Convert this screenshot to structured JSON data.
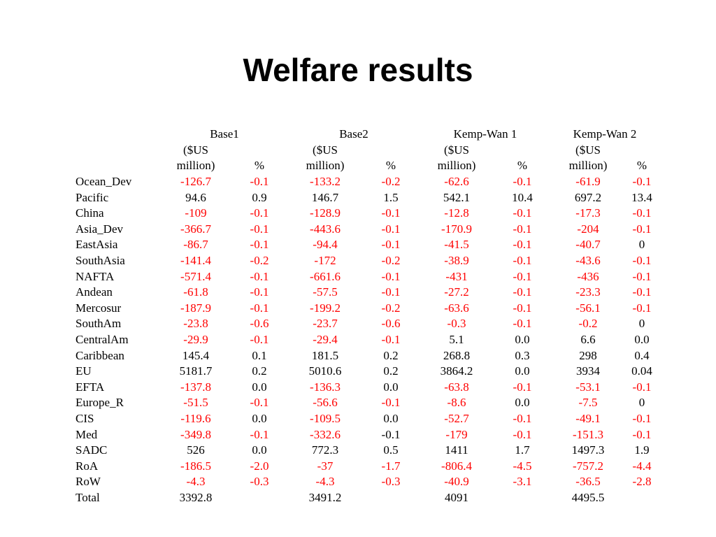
{
  "title": "Welfare results",
  "colors": {
    "negative": "#ff0000",
    "text": "#000000"
  },
  "header": {
    "groups": [
      "Base1",
      "Base2",
      "Kemp-Wan 1",
      "Kemp-Wan 2"
    ],
    "unit_line1": "($US",
    "unit_line2": "million)",
    "pct": "%"
  },
  "rows": [
    {
      "label": "Ocean_Dev",
      "bold": false,
      "cells": [
        {
          "v": "-126.7",
          "red": true
        },
        {
          "v": "-0.1",
          "red": true
        },
        {
          "v": "-133.2",
          "red": true
        },
        {
          "v": "-0.2",
          "red": true
        },
        {
          "v": "-62.6",
          "red": true
        },
        {
          "v": "-0.1",
          "red": true
        },
        {
          "v": "-61.9",
          "red": true
        },
        {
          "v": "-0.1",
          "red": true
        }
      ]
    },
    {
      "label": "Pacific",
      "bold": true,
      "cells": [
        {
          "v": "94.6",
          "red": false
        },
        {
          "v": "0.9",
          "red": false
        },
        {
          "v": "146.7",
          "red": false
        },
        {
          "v": "1.5",
          "red": false
        },
        {
          "v": "542.1",
          "red": false
        },
        {
          "v": "10.4",
          "red": false
        },
        {
          "v": "697.2",
          "red": false
        },
        {
          "v": "13.4",
          "red": false
        }
      ]
    },
    {
      "label": "China",
      "bold": false,
      "cells": [
        {
          "v": "-109",
          "red": true
        },
        {
          "v": "-0.1",
          "red": true
        },
        {
          "v": "-128.9",
          "red": true
        },
        {
          "v": "-0.1",
          "red": true
        },
        {
          "v": "-12.8",
          "red": true
        },
        {
          "v": "-0.1",
          "red": true
        },
        {
          "v": "-17.3",
          "red": true
        },
        {
          "v": "-0.1",
          "red": true
        }
      ]
    },
    {
      "label": "Asia_Dev",
      "bold": false,
      "cells": [
        {
          "v": "-366.7",
          "red": true
        },
        {
          "v": "-0.1",
          "red": true
        },
        {
          "v": "-443.6",
          "red": true
        },
        {
          "v": "-0.1",
          "red": true
        },
        {
          "v": "-170.9",
          "red": true
        },
        {
          "v": "-0.1",
          "red": true
        },
        {
          "v": "-204",
          "red": true
        },
        {
          "v": "-0.1",
          "red": true
        }
      ]
    },
    {
      "label": "EastAsia",
      "bold": false,
      "cells": [
        {
          "v": "-86.7",
          "red": true
        },
        {
          "v": "-0.1",
          "red": true
        },
        {
          "v": "-94.4",
          "red": true
        },
        {
          "v": "-0.1",
          "red": true
        },
        {
          "v": "-41.5",
          "red": true
        },
        {
          "v": "-0.1",
          "red": true
        },
        {
          "v": "-40.7",
          "red": true
        },
        {
          "v": "0",
          "red": false
        }
      ]
    },
    {
      "label": "SouthAsia",
      "bold": false,
      "cells": [
        {
          "v": "-141.4",
          "red": true
        },
        {
          "v": "-0.2",
          "red": true
        },
        {
          "v": "-172",
          "red": true
        },
        {
          "v": "-0.2",
          "red": true
        },
        {
          "v": "-38.9",
          "red": true
        },
        {
          "v": "-0.1",
          "red": true
        },
        {
          "v": "-43.6",
          "red": true
        },
        {
          "v": "-0.1",
          "red": true
        }
      ]
    },
    {
      "label": "NAFTA",
      "bold": false,
      "cells": [
        {
          "v": "-571.4",
          "red": true
        },
        {
          "v": "-0.1",
          "red": true
        },
        {
          "v": "-661.6",
          "red": true
        },
        {
          "v": "-0.1",
          "red": true
        },
        {
          "v": "-431",
          "red": true
        },
        {
          "v": "-0.1",
          "red": true
        },
        {
          "v": "-436",
          "red": true
        },
        {
          "v": "-0.1",
          "red": true
        }
      ]
    },
    {
      "label": "Andean",
      "bold": false,
      "cells": [
        {
          "v": "-61.8",
          "red": true
        },
        {
          "v": "-0.1",
          "red": true
        },
        {
          "v": "-57.5",
          "red": true
        },
        {
          "v": "-0.1",
          "red": true
        },
        {
          "v": "-27.2",
          "red": true
        },
        {
          "v": "-0.1",
          "red": true
        },
        {
          "v": "-23.3",
          "red": true
        },
        {
          "v": "-0.1",
          "red": true
        }
      ]
    },
    {
      "label": "Mercosur",
      "bold": false,
      "cells": [
        {
          "v": "-187.9",
          "red": true
        },
        {
          "v": "-0.1",
          "red": true
        },
        {
          "v": "-199.2",
          "red": true
        },
        {
          "v": "-0.2",
          "red": true
        },
        {
          "v": "-63.6",
          "red": true
        },
        {
          "v": "-0.1",
          "red": true
        },
        {
          "v": "-56.1",
          "red": true
        },
        {
          "v": "-0.1",
          "red": true
        }
      ]
    },
    {
      "label": "SouthAm",
      "bold": false,
      "cells": [
        {
          "v": "-23.8",
          "red": true
        },
        {
          "v": "-0.6",
          "red": true
        },
        {
          "v": "-23.7",
          "red": true
        },
        {
          "v": "-0.6",
          "red": true
        },
        {
          "v": "-0.3",
          "red": true
        },
        {
          "v": "-0.1",
          "red": true
        },
        {
          "v": "-0.2",
          "red": true
        },
        {
          "v": "0",
          "red": false
        }
      ]
    },
    {
      "label": "CentralAm",
      "bold": false,
      "cells": [
        {
          "v": "-29.9",
          "red": true
        },
        {
          "v": "-0.1",
          "red": true
        },
        {
          "v": "-29.4",
          "red": true
        },
        {
          "v": "-0.1",
          "red": true
        },
        {
          "v": "5.1",
          "red": false
        },
        {
          "v": "0.0",
          "red": false
        },
        {
          "v": "6.6",
          "red": false
        },
        {
          "v": "0.0",
          "red": false
        }
      ]
    },
    {
      "label": "Caribbean",
      "bold": true,
      "cells": [
        {
          "v": "145.4",
          "red": false
        },
        {
          "v": "0.1",
          "red": false
        },
        {
          "v": "181.5",
          "red": false
        },
        {
          "v": "0.2",
          "red": false
        },
        {
          "v": "268.8",
          "red": false
        },
        {
          "v": "0.3",
          "red": false
        },
        {
          "v": "298",
          "red": false
        },
        {
          "v": "0.4",
          "red": false
        }
      ]
    },
    {
      "label": "EU",
      "bold": true,
      "cells": [
        {
          "v": "5181.7",
          "red": false
        },
        {
          "v": "0.2",
          "red": false
        },
        {
          "v": "5010.6",
          "red": false
        },
        {
          "v": "0.2",
          "red": false
        },
        {
          "v": "3864.2",
          "red": false
        },
        {
          "v": "0.0",
          "red": false
        },
        {
          "v": "3934",
          "red": false
        },
        {
          "v": "0.04",
          "red": false
        }
      ]
    },
    {
      "label": "EFTA",
      "bold": false,
      "cells": [
        {
          "v": "-137.8",
          "red": true
        },
        {
          "v": "0.0",
          "red": false
        },
        {
          "v": "-136.3",
          "red": true
        },
        {
          "v": "0.0",
          "red": false
        },
        {
          "v": "-63.8",
          "red": true
        },
        {
          "v": "-0.1",
          "red": true
        },
        {
          "v": "-53.1",
          "red": true
        },
        {
          "v": "-0.1",
          "red": true
        }
      ]
    },
    {
      "label": "Europe_R",
      "bold": false,
      "cells": [
        {
          "v": "-51.5",
          "red": true
        },
        {
          "v": "-0.1",
          "red": true
        },
        {
          "v": "-56.6",
          "red": true
        },
        {
          "v": "-0.1",
          "red": true
        },
        {
          "v": "-8.6",
          "red": true
        },
        {
          "v": "0.0",
          "red": false
        },
        {
          "v": "-7.5",
          "red": true
        },
        {
          "v": "0",
          "red": false
        }
      ]
    },
    {
      "label": "CIS",
      "bold": false,
      "cells": [
        {
          "v": "-119.6",
          "red": true
        },
        {
          "v": "0.0",
          "red": false
        },
        {
          "v": "-109.5",
          "red": true
        },
        {
          "v": "0.0",
          "red": false
        },
        {
          "v": "-52.7",
          "red": true
        },
        {
          "v": "-0.1",
          "red": true
        },
        {
          "v": "-49.1",
          "red": true
        },
        {
          "v": "-0.1",
          "red": true
        }
      ]
    },
    {
      "label": "Med",
      "bold": false,
      "cells": [
        {
          "v": "-349.8",
          "red": true
        },
        {
          "v": "-0.1",
          "red": true
        },
        {
          "v": "-332.6",
          "red": true
        },
        {
          "v": "-0.1",
          "red": false
        },
        {
          "v": "-179",
          "red": true
        },
        {
          "v": "-0.1",
          "red": true
        },
        {
          "v": "-151.3",
          "red": true
        },
        {
          "v": "-0.1",
          "red": true
        }
      ]
    },
    {
      "label": "SADC",
      "bold": true,
      "cells": [
        {
          "v": "526",
          "red": false
        },
        {
          "v": "0.0",
          "red": false
        },
        {
          "v": "772.3",
          "red": false
        },
        {
          "v": "0.5",
          "red": false
        },
        {
          "v": "1411",
          "red": false
        },
        {
          "v": "1.7",
          "red": false
        },
        {
          "v": "1497.3",
          "red": false
        },
        {
          "v": "1.9",
          "red": false
        }
      ]
    },
    {
      "label": "RoA",
      "bold": true,
      "cells": [
        {
          "v": "-186.5",
          "red": true
        },
        {
          "v": "-2.0",
          "red": true
        },
        {
          "v": "-37",
          "red": true
        },
        {
          "v": "-1.7",
          "red": true
        },
        {
          "v": "-806.4",
          "red": true
        },
        {
          "v": "-4.5",
          "red": true
        },
        {
          "v": "-757.2",
          "red": true
        },
        {
          "v": "-4.4",
          "red": true
        }
      ]
    },
    {
      "label": "RoW",
      "bold": false,
      "cells": [
        {
          "v": "-4.3",
          "red": true
        },
        {
          "v": "-0.3",
          "red": true
        },
        {
          "v": "-4.3",
          "red": true
        },
        {
          "v": "-0.3",
          "red": true
        },
        {
          "v": "-40.9",
          "red": true
        },
        {
          "v": "-3.1",
          "red": true
        },
        {
          "v": "-36.5",
          "red": true
        },
        {
          "v": "-2.8",
          "red": true
        }
      ]
    },
    {
      "label": "Total",
      "bold": true,
      "cells": [
        {
          "v": "3392.8",
          "red": false
        },
        {
          "v": "",
          "red": false
        },
        {
          "v": "3491.2",
          "red": false
        },
        {
          "v": "",
          "red": false
        },
        {
          "v": "4091",
          "red": false
        },
        {
          "v": "",
          "red": false
        },
        {
          "v": "4495.5",
          "red": false
        },
        {
          "v": "",
          "red": false
        }
      ]
    }
  ]
}
